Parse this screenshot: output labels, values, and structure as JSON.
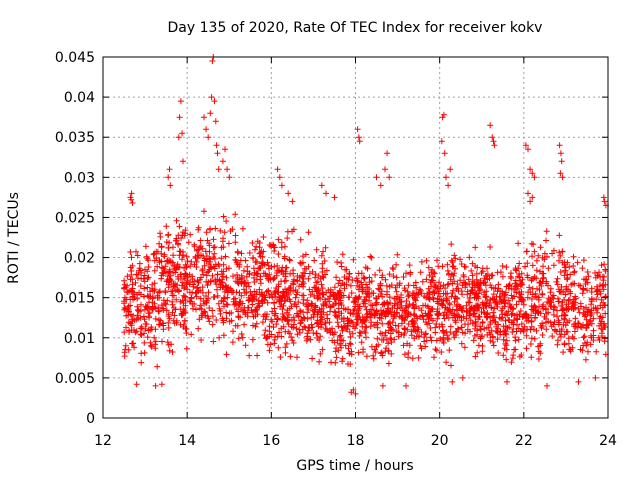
{
  "chart_data": {
    "type": "scatter",
    "title": "Day 135 of 2020, Rate Of TEC Index for receiver kokv",
    "xlabel": "GPS time / hours",
    "ylabel": "ROTI / TECUs",
    "xlim": [
      12,
      24
    ],
    "ylim": [
      0,
      0.045
    ],
    "x_ticks": [
      12,
      14,
      16,
      18,
      20,
      22,
      24
    ],
    "x_tick_labels": [
      "12",
      "14",
      "16",
      "18",
      "20",
      "22",
      "24"
    ],
    "y_ticks": [
      0,
      0.005,
      0.01,
      0.015,
      0.02,
      0.025,
      0.03,
      0.035,
      0.04,
      0.045
    ],
    "y_tick_labels": [
      "0",
      "0.005",
      "0.01",
      "0.015",
      "0.02",
      "0.025",
      "0.03",
      "0.035",
      "0.04",
      "0.045"
    ],
    "grid": true,
    "marker": "+",
    "series": [
      {
        "name": "ROTI",
        "color": "#ff0000",
        "x_range": [
          12.5,
          23.95
        ],
        "typical_range": [
          0.005,
          0.023
        ],
        "envelope": [
          {
            "x": 12.5,
            "low": 0.005,
            "high": 0.021
          },
          {
            "x": 13.0,
            "low": 0.0045,
            "high": 0.024
          },
          {
            "x": 13.5,
            "low": 0.005,
            "high": 0.026
          },
          {
            "x": 14.0,
            "low": 0.0055,
            "high": 0.026
          },
          {
            "x": 14.5,
            "low": 0.006,
            "high": 0.028
          },
          {
            "x": 15.0,
            "low": 0.006,
            "high": 0.026
          },
          {
            "x": 15.5,
            "low": 0.006,
            "high": 0.024
          },
          {
            "x": 16.0,
            "low": 0.0055,
            "high": 0.025
          },
          {
            "x": 16.5,
            "low": 0.005,
            "high": 0.024
          },
          {
            "x": 17.0,
            "low": 0.005,
            "high": 0.023
          },
          {
            "x": 17.5,
            "low": 0.005,
            "high": 0.022
          },
          {
            "x": 18.0,
            "low": 0.004,
            "high": 0.022
          },
          {
            "x": 18.5,
            "low": 0.004,
            "high": 0.021
          },
          {
            "x": 19.0,
            "low": 0.005,
            "high": 0.021
          },
          {
            "x": 19.5,
            "low": 0.006,
            "high": 0.02
          },
          {
            "x": 20.0,
            "low": 0.006,
            "high": 0.022
          },
          {
            "x": 20.5,
            "low": 0.006,
            "high": 0.023
          },
          {
            "x": 21.0,
            "low": 0.0055,
            "high": 0.022
          },
          {
            "x": 21.5,
            "low": 0.0055,
            "high": 0.021
          },
          {
            "x": 22.0,
            "low": 0.005,
            "high": 0.023
          },
          {
            "x": 22.5,
            "low": 0.005,
            "high": 0.024
          },
          {
            "x": 23.0,
            "low": 0.005,
            "high": 0.023
          },
          {
            "x": 23.5,
            "low": 0.005,
            "high": 0.022
          },
          {
            "x": 23.95,
            "low": 0.005,
            "high": 0.021
          }
        ],
        "points": [
          [
            12.65,
            0.0275
          ],
          [
            12.67,
            0.0272
          ],
          [
            12.7,
            0.0268
          ],
          [
            12.68,
            0.028
          ],
          [
            13.55,
            0.03
          ],
          [
            13.58,
            0.031
          ],
          [
            13.6,
            0.029
          ],
          [
            13.85,
            0.0395
          ],
          [
            13.82,
            0.0375
          ],
          [
            13.88,
            0.0355
          ],
          [
            13.8,
            0.035
          ],
          [
            13.9,
            0.032
          ],
          [
            14.4,
            0.0375
          ],
          [
            14.45,
            0.036
          ],
          [
            14.5,
            0.035
          ],
          [
            14.55,
            0.038
          ],
          [
            14.6,
            0.0445
          ],
          [
            14.62,
            0.045
          ],
          [
            14.58,
            0.04
          ],
          [
            14.65,
            0.0395
          ],
          [
            14.68,
            0.037
          ],
          [
            14.7,
            0.034
          ],
          [
            14.72,
            0.033
          ],
          [
            14.75,
            0.031
          ],
          [
            14.85,
            0.032
          ],
          [
            14.9,
            0.0335
          ],
          [
            14.95,
            0.031
          ],
          [
            15.0,
            0.03
          ],
          [
            16.15,
            0.031
          ],
          [
            16.2,
            0.03
          ],
          [
            16.25,
            0.029
          ],
          [
            16.4,
            0.028
          ],
          [
            16.5,
            0.027
          ],
          [
            17.2,
            0.029
          ],
          [
            17.3,
            0.028
          ],
          [
            17.5,
            0.0275
          ],
          [
            18.05,
            0.036
          ],
          [
            18.08,
            0.035
          ],
          [
            18.1,
            0.0345
          ],
          [
            18.5,
            0.03
          ],
          [
            18.6,
            0.029
          ],
          [
            18.7,
            0.031
          ],
          [
            18.75,
            0.033
          ],
          [
            18.8,
            0.03
          ],
          [
            20.05,
            0.0345
          ],
          [
            20.07,
            0.0375
          ],
          [
            20.1,
            0.0378
          ],
          [
            20.12,
            0.033
          ],
          [
            20.15,
            0.03
          ],
          [
            20.2,
            0.029
          ],
          [
            20.25,
            0.031
          ],
          [
            21.2,
            0.0365
          ],
          [
            21.25,
            0.035
          ],
          [
            21.28,
            0.0345
          ],
          [
            21.3,
            0.034
          ],
          [
            22.05,
            0.034
          ],
          [
            22.1,
            0.0335
          ],
          [
            22.15,
            0.031
          ],
          [
            22.2,
            0.0305
          ],
          [
            22.25,
            0.03
          ],
          [
            22.1,
            0.028
          ],
          [
            22.15,
            0.027
          ],
          [
            22.2,
            0.0275
          ],
          [
            22.85,
            0.034
          ],
          [
            22.88,
            0.033
          ],
          [
            22.9,
            0.032
          ],
          [
            22.87,
            0.0305
          ],
          [
            22.92,
            0.03
          ],
          [
            23.9,
            0.0275
          ],
          [
            23.92,
            0.027
          ],
          [
            23.95,
            0.0265
          ],
          [
            17.95,
            0.0035
          ],
          [
            18.0,
            0.003
          ],
          [
            17.9,
            0.0032
          ],
          [
            18.65,
            0.004
          ],
          [
            13.25,
            0.004
          ],
          [
            13.4,
            0.0042
          ],
          [
            19.2,
            0.004
          ],
          [
            20.3,
            0.0045
          ],
          [
            20.55,
            0.005
          ],
          [
            21.6,
            0.0045
          ],
          [
            22.55,
            0.004
          ],
          [
            23.3,
            0.0045
          ],
          [
            23.7,
            0.005
          ],
          [
            12.8,
            0.0042
          ]
        ]
      }
    ]
  }
}
